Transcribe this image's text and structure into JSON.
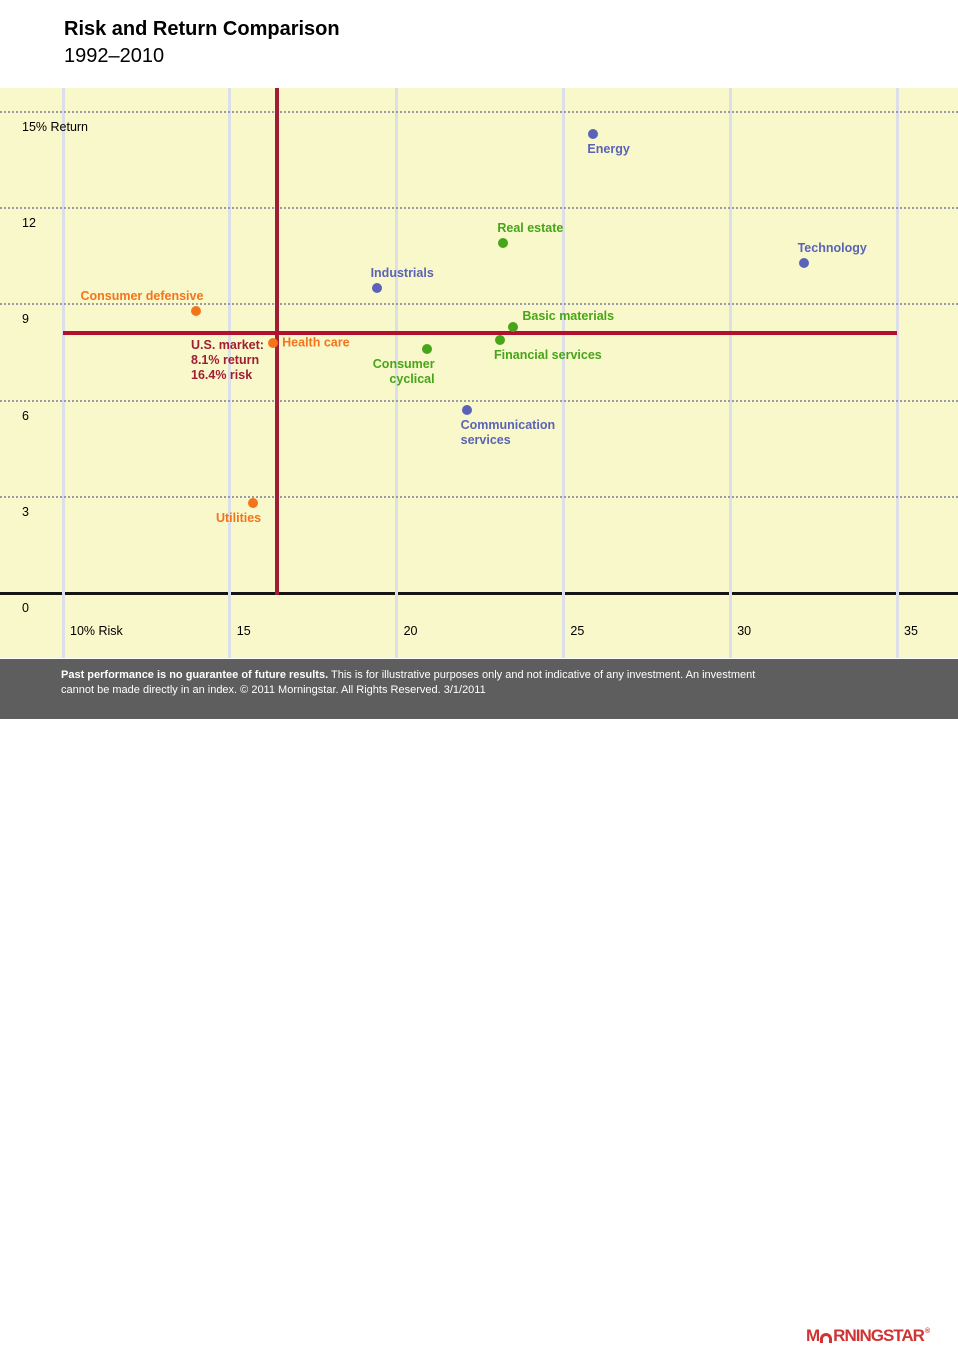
{
  "header": {
    "title": "Risk and Return Comparison",
    "subtitle": "1992–2010"
  },
  "chart_data": {
    "type": "scatter",
    "title": "Risk and Return Comparison",
    "subtitle": "1992–2010",
    "x_axis": {
      "label": "Risk (%)",
      "ticks": [
        10,
        15,
        20,
        25,
        30,
        35
      ],
      "tick_labels": [
        "10% Risk",
        "15",
        "20",
        "25",
        "30",
        "35"
      ],
      "range_visible": [
        8.1,
        36.8
      ],
      "gridlines": "solid-light"
    },
    "y_axis": {
      "label": "Return (%)",
      "ticks": [
        15,
        12,
        9,
        6,
        3,
        0
      ],
      "tick_labels": [
        "15% Return",
        "12",
        "9",
        "6",
        "3",
        "0"
      ],
      "range_visible": [
        -2.0,
        15.8
      ],
      "gridlines": "dotted"
    },
    "benchmark": {
      "name": "U.S. market",
      "return_pct": 8.1,
      "risk_pct": 16.4,
      "label_lines": [
        "U.S. market:",
        "8.1% return",
        "16.4% risk"
      ],
      "line_color_v": "#A01D33",
      "line_color_h": "#B30F2F",
      "text_color": "#A01D33"
    },
    "series": [
      {
        "name": "Energy",
        "risk": 25.9,
        "return": 14.3,
        "color": "#5B63B8",
        "label_lines": [
          "Energy"
        ],
        "label_pos": "bl"
      },
      {
        "name": "Real estate",
        "risk": 23.2,
        "return": 10.9,
        "color": "#47A519",
        "label_lines": [
          "Real estate"
        ],
        "label_pos": "al"
      },
      {
        "name": "Technology",
        "risk": 32.2,
        "return": 10.3,
        "color": "#5B63B8",
        "label_lines": [
          "Technology"
        ],
        "label_pos": "al"
      },
      {
        "name": "Industrials",
        "risk": 19.4,
        "return": 9.5,
        "color": "#5B63B8",
        "label_lines": [
          "Industrials"
        ],
        "label_pos": "al"
      },
      {
        "name": "Consumer defensive",
        "risk": 14.0,
        "return": 8.8,
        "color": "#F4741C",
        "label_lines": [
          "Consumer defensive"
        ],
        "label_pos": "ar"
      },
      {
        "name": "Basic materials",
        "risk": 23.5,
        "return": 8.3,
        "color": "#47A519",
        "label_lines": [
          "Basic materials"
        ],
        "label_pos": "ra"
      },
      {
        "name": "Health care",
        "risk": 16.3,
        "return": 7.8,
        "color": "#F4741C",
        "label_lines": [
          "Health care"
        ],
        "label_pos": "r"
      },
      {
        "name": "Financial services",
        "risk": 23.1,
        "return": 7.9,
        "color": "#47A519",
        "label_lines": [
          "Financial services"
        ],
        "label_pos": "bl"
      },
      {
        "name": "Consumer cyclical",
        "risk": 20.9,
        "return": 7.6,
        "color": "#47A519",
        "label_lines": [
          "Consumer",
          "cyclical"
        ],
        "label_pos": "br"
      },
      {
        "name": "Communication services",
        "risk": 22.1,
        "return": 5.7,
        "color": "#5B63B8",
        "label_lines": [
          "Communication",
          "services"
        ],
        "label_pos": "bl"
      },
      {
        "name": "Utilities",
        "risk": 15.7,
        "return": 2.8,
        "color": "#F4741C",
        "label_lines": [
          "Utilities"
        ],
        "label_pos": "br"
      }
    ],
    "legend": "none",
    "colors": {
      "plot_background": "#F8F8CA",
      "blue_series": "#5B63B8",
      "green_series": "#47A519",
      "orange_series": "#F4741C",
      "benchmark_red": "#A01D33"
    }
  },
  "footer": {
    "bold": "Past performance is no guarantee of future results.",
    "rest": " This is for illustrative purposes only and not indicative of any investment. An investment cannot be made directly in an index. © 2011 Morningstar. All Rights Reserved. 3/1/2011"
  },
  "logo": {
    "brand": "Morningstar",
    "prefix": "M",
    "suffix": "RNINGSTAR",
    "registered": "®",
    "color": "#CE3434"
  }
}
